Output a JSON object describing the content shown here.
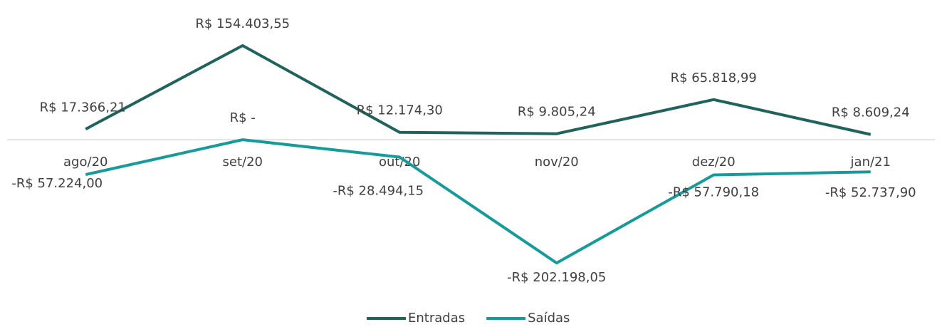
{
  "chart_data": {
    "type": "line",
    "categories": [
      "ago/20",
      "set/20",
      "out/20",
      "nov/20",
      "dez/20",
      "jan/21"
    ],
    "series": [
      {
        "name": "Entradas",
        "color": "#1f635c",
        "values": [
          17366.21,
          154403.55,
          12174.3,
          9805.24,
          65818.99,
          8609.24
        ],
        "value_labels": [
          "R$ 17.366,21",
          "R$ 154.403,55",
          "R$ 12.174,30",
          "R$ 9.805,24",
          "R$ 65.818,99",
          "R$ 8.609,24"
        ]
      },
      {
        "name": "Saídas",
        "color": "#169a9a",
        "values": [
          -57224.0,
          0,
          -28494.15,
          -202198.05,
          -57790.18,
          -52737.9
        ],
        "value_labels": [
          "-R$ 57.224,00",
          "R$ -",
          "-R$ 28.494,15",
          "-R$ 202.198,05",
          "-R$ 57.790,18",
          "-R$ 52.737,90"
        ]
      }
    ],
    "ylim": [
      -250000,
      200000
    ],
    "legend": "bottom"
  }
}
